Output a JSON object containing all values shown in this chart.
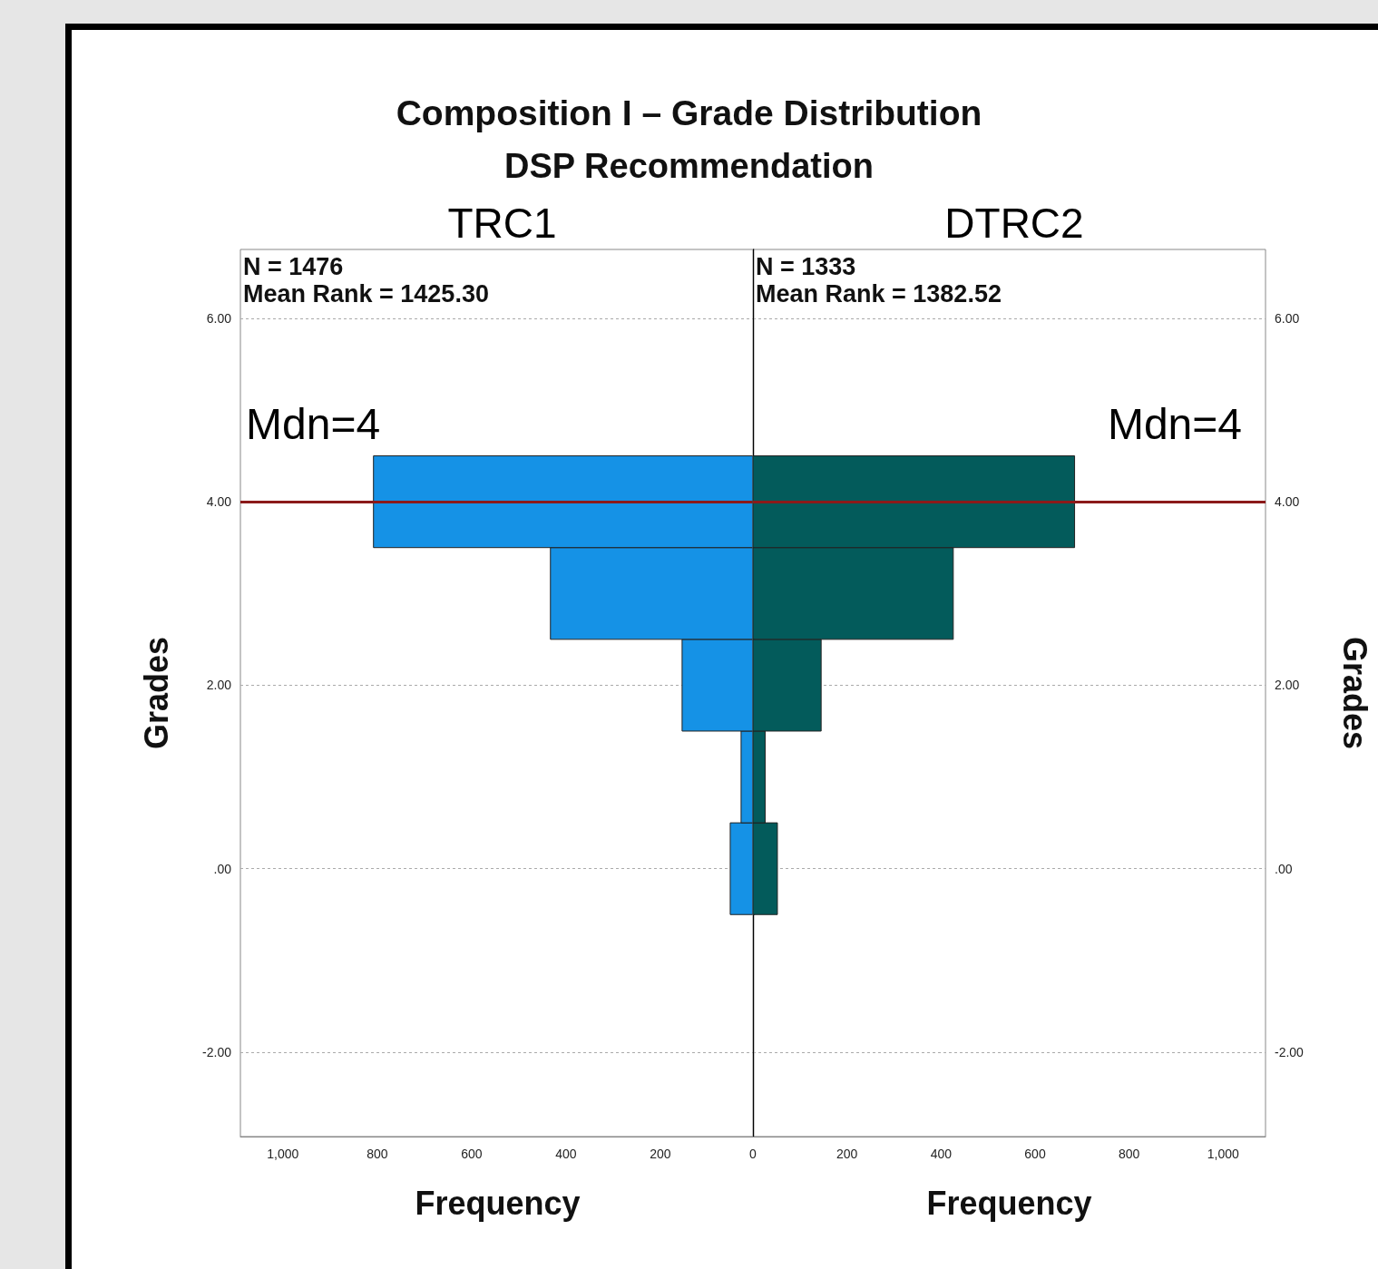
{
  "chart_data": [
    {
      "type": "other",
      "title": "Composition I – Grade Distribution",
      "subtitle": "DSP Recommendation"
    },
    {
      "type": "histogram",
      "orientation": "horizontal",
      "title": "TRC1",
      "bins": [
        -0.5,
        0.5,
        1.5,
        2.5,
        3.5,
        4.5
      ],
      "values": [
        52,
        29,
        154,
        433,
        808
      ],
      "color": "#1592e6",
      "xlim": [
        1090,
        0
      ],
      "xticks": [
        200,
        400,
        600,
        800,
        {
          "value": 1000,
          "label": "1,000"
        }
      ],
      "ylim": [
        -2.92,
        6.75
      ],
      "yticks": [
        {
          "value": -2,
          "label": "-2.00"
        },
        {
          "value": 0,
          "label": ".00"
        },
        {
          "value": 2,
          "label": "2.00"
        },
        {
          "value": 4,
          "label": "4.00"
        },
        {
          "value": 6,
          "label": "6.00"
        }
      ],
      "xlabel": "Frequency",
      "ylabel": "Grades",
      "grid": "y",
      "annotations": [
        "N = 1476",
        "Mean Rank = 1425.30"
      ],
      "ref_lines": [
        {
          "axis": "y",
          "value": 4,
          "label": "Mdn=4",
          "color": "#8b1a1a"
        }
      ]
    },
    {
      "type": "histogram",
      "orientation": "horizontal",
      "title": "DTRC2",
      "bins": [
        -0.5,
        0.5,
        1.5,
        2.5,
        3.5,
        4.5
      ],
      "values": [
        52,
        26,
        145,
        426,
        684
      ],
      "color": "#035b5b",
      "xlim": [
        0,
        1090
      ],
      "xticks": [
        0,
        200,
        400,
        600,
        800,
        {
          "value": 1000,
          "label": "1,000"
        }
      ],
      "ylim": [
        -2.92,
        6.75
      ],
      "yticks": [
        {
          "value": -2,
          "label": "-2.00"
        },
        {
          "value": 0,
          "label": ".00"
        },
        {
          "value": 2,
          "label": "2.00"
        },
        {
          "value": 4,
          "label": "4.00"
        },
        {
          "value": 6,
          "label": "6.00"
        }
      ],
      "xlabel": "Frequency",
      "ylabel": "Grades",
      "grid": "y",
      "annotations": [
        "N = 1333",
        "Mean Rank = 1382.52"
      ],
      "ref_lines": [
        {
          "axis": "y",
          "value": 4,
          "label": "Mdn=4",
          "color": "#8b1a1a"
        }
      ]
    }
  ]
}
